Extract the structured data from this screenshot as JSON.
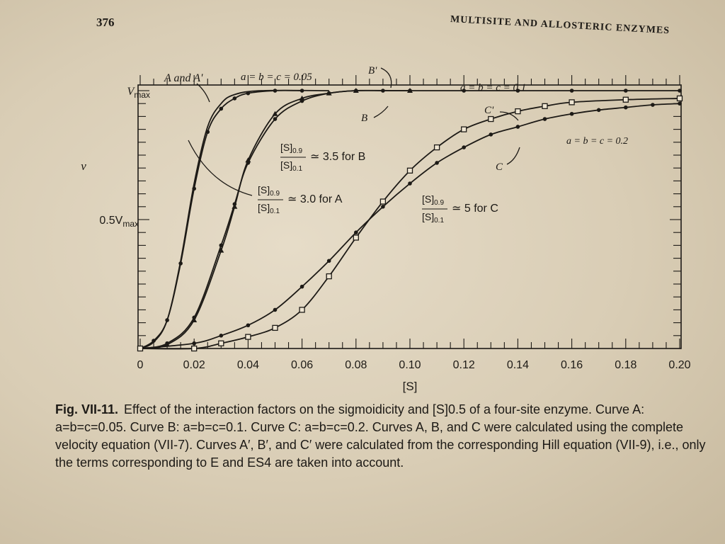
{
  "page": {
    "number": "376",
    "running_head": "MULTISITE AND ALLOSTERIC ENZYMES"
  },
  "chart_data": {
    "type": "line",
    "title": "",
    "xlabel": "[S]",
    "ylabel": "v",
    "xlim": [
      0,
      0.2
    ],
    "ylim": [
      0,
      1
    ],
    "x_ticks": [
      "0",
      "0.02",
      "0.04",
      "0.06",
      "0.08",
      "0.10",
      "0.12",
      "0.14",
      "0.16",
      "0.18",
      "0.20"
    ],
    "y_tick_labels": {
      "vmax": "V",
      "vmax_sub": "max",
      "half": "0.5V",
      "half_sub": "max"
    },
    "grid": false,
    "series": [
      {
        "name": "A",
        "marker": "dot",
        "points": [
          [
            0,
            0
          ],
          [
            0.005,
            0.03
          ],
          [
            0.01,
            0.11
          ],
          [
            0.015,
            0.33
          ],
          [
            0.02,
            0.62
          ],
          [
            0.025,
            0.84
          ],
          [
            0.03,
            0.93
          ],
          [
            0.035,
            0.97
          ],
          [
            0.04,
            0.99
          ],
          [
            0.05,
            1.0
          ],
          [
            0.06,
            1.0
          ]
        ]
      },
      {
        "name": "A'",
        "marker": "none",
        "points": [
          [
            0,
            0
          ],
          [
            0.005,
            0.025
          ],
          [
            0.01,
            0.11
          ],
          [
            0.015,
            0.34
          ],
          [
            0.02,
            0.64
          ],
          [
            0.025,
            0.86
          ],
          [
            0.03,
            0.95
          ],
          [
            0.035,
            0.985
          ],
          [
            0.045,
            1.0
          ],
          [
            0.07,
            1.0
          ]
        ]
      },
      {
        "name": "B",
        "marker": "dot",
        "points": [
          [
            0,
            0
          ],
          [
            0.01,
            0.02
          ],
          [
            0.02,
            0.12
          ],
          [
            0.03,
            0.4
          ],
          [
            0.035,
            0.56
          ],
          [
            0.04,
            0.72
          ],
          [
            0.05,
            0.89
          ],
          [
            0.06,
            0.96
          ],
          [
            0.07,
            0.99
          ],
          [
            0.08,
            1.0
          ],
          [
            0.09,
            1.0
          ],
          [
            0.1,
            1.0
          ],
          [
            0.12,
            1.0
          ],
          [
            0.14,
            1.0
          ],
          [
            0.16,
            1.0
          ],
          [
            0.18,
            1.0
          ],
          [
            0.2,
            1.0
          ]
        ]
      },
      {
        "name": "B'",
        "marker": "triangle",
        "points": [
          [
            0,
            0
          ],
          [
            0.01,
            0.015
          ],
          [
            0.02,
            0.11
          ],
          [
            0.03,
            0.38
          ],
          [
            0.035,
            0.55
          ],
          [
            0.04,
            0.73
          ],
          [
            0.05,
            0.91
          ],
          [
            0.06,
            0.97
          ],
          [
            0.07,
            0.99
          ],
          [
            0.08,
            1.0
          ],
          [
            0.1,
            1.0
          ]
        ]
      },
      {
        "name": "C",
        "marker": "dot",
        "points": [
          [
            0,
            0
          ],
          [
            0.02,
            0.02
          ],
          [
            0.03,
            0.05
          ],
          [
            0.04,
            0.09
          ],
          [
            0.05,
            0.15
          ],
          [
            0.06,
            0.24
          ],
          [
            0.07,
            0.34
          ],
          [
            0.08,
            0.45
          ],
          [
            0.09,
            0.55
          ],
          [
            0.1,
            0.64
          ],
          [
            0.11,
            0.72
          ],
          [
            0.12,
            0.78
          ],
          [
            0.13,
            0.83
          ],
          [
            0.14,
            0.86
          ],
          [
            0.15,
            0.89
          ],
          [
            0.16,
            0.91
          ],
          [
            0.17,
            0.925
          ],
          [
            0.18,
            0.935
          ],
          [
            0.19,
            0.945
          ],
          [
            0.2,
            0.95
          ]
        ]
      },
      {
        "name": "C'",
        "marker": "square",
        "points": [
          [
            0,
            0
          ],
          [
            0.02,
            0.0
          ],
          [
            0.03,
            0.02
          ],
          [
            0.04,
            0.045
          ],
          [
            0.05,
            0.08
          ],
          [
            0.06,
            0.15
          ],
          [
            0.07,
            0.28
          ],
          [
            0.08,
            0.43
          ],
          [
            0.09,
            0.57
          ],
          [
            0.1,
            0.69
          ],
          [
            0.11,
            0.78
          ],
          [
            0.12,
            0.85
          ],
          [
            0.13,
            0.89
          ],
          [
            0.14,
            0.92
          ],
          [
            0.15,
            0.94
          ],
          [
            0.16,
            0.955
          ],
          [
            0.18,
            0.965
          ],
          [
            0.2,
            0.97
          ]
        ]
      }
    ],
    "annotations": {
      "curve_a_label": "A and A'",
      "param_a": "a = b = c = 0.05",
      "curve_b_prime": "B'",
      "curve_b": "B",
      "param_b": "a = b = c = 0.1",
      "curve_c_prime": "C'",
      "param_c": "a = b = c = 0.2",
      "curve_c": "C",
      "ratio_num": "[S]",
      "ratio_num_sub": "0.9",
      "ratio_den": "[S]",
      "ratio_den_sub": "0.1",
      "ratio_b": "≃ 3.5 for B",
      "ratio_a": "≃ 3.0 for A",
      "ratio_c": "≃ 5 for C"
    }
  },
  "caption": {
    "label": "Fig. VII-11.",
    "text": "Effect of the interaction factors on the sigmoidicity and [S]0.5 of a four-site enzyme. Curve A: a=b=c=0.05. Curve B: a=b=c=0.1. Curve C: a=b=c=0.2. Curves A, B, and C were calculated using the complete velocity equation (VII-7). Curves A′, B′, and C′ were calculated from the corresponding Hill equation (VII-9), i.e., only the terms corresponding to E and ES4 are taken into account."
  }
}
